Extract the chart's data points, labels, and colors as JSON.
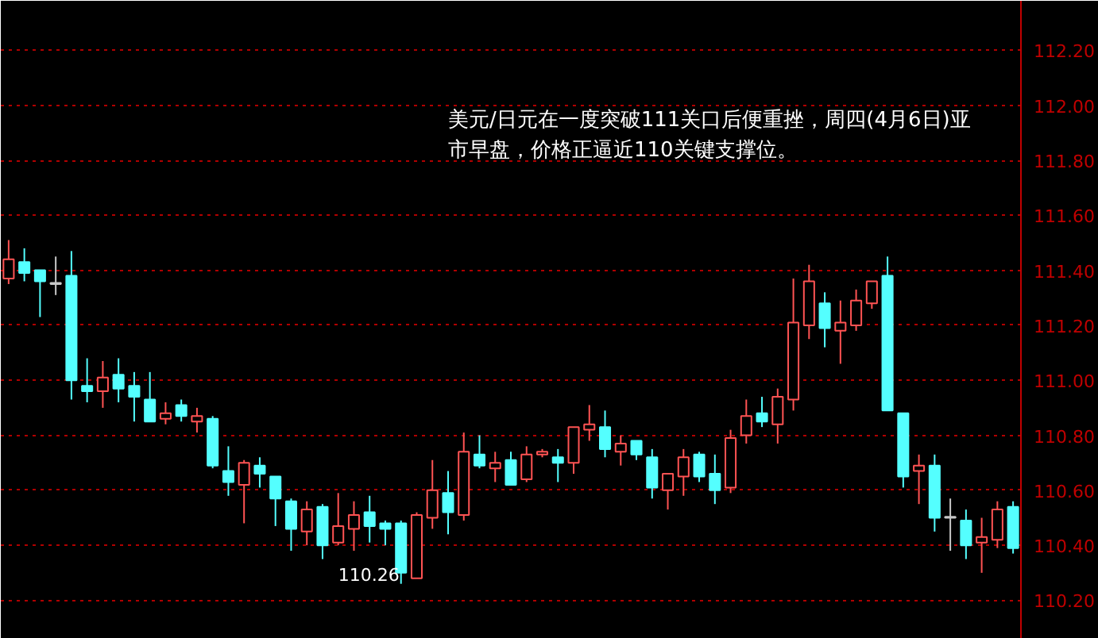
{
  "chart_data": {
    "type": "candlestick",
    "categories": [
      null,
      null,
      null,
      null,
      null,
      null,
      null,
      null,
      null,
      null,
      null,
      null,
      null,
      null,
      null,
      null,
      null,
      null,
      null,
      null,
      null,
      null,
      null,
      null,
      null,
      null,
      null,
      null,
      null,
      null,
      null,
      null,
      null,
      null,
      null,
      null,
      null,
      null,
      null,
      null,
      null,
      null,
      null,
      null,
      null,
      null,
      null,
      null,
      null,
      null,
      null,
      null,
      null,
      null,
      null,
      null,
      null,
      null,
      null,
      null,
      null,
      null,
      null,
      null,
      null
    ],
    "ohlc": [
      [
        111.37,
        111.51,
        111.35,
        111.44
      ],
      [
        111.43,
        111.48,
        111.36,
        111.39
      ],
      [
        111.4,
        111.4,
        111.23,
        111.36
      ],
      [
        111.35,
        111.45,
        111.31,
        111.35
      ],
      [
        111.38,
        111.47,
        110.93,
        111.0
      ],
      [
        110.98,
        111.08,
        110.92,
        110.96
      ],
      [
        110.96,
        111.07,
        110.9,
        111.01
      ],
      [
        111.02,
        111.08,
        110.92,
        110.97
      ],
      [
        110.98,
        111.03,
        110.85,
        110.94
      ],
      [
        110.93,
        111.03,
        110.85,
        110.85
      ],
      [
        110.86,
        110.92,
        110.84,
        110.88
      ],
      [
        110.91,
        110.93,
        110.85,
        110.87
      ],
      [
        110.85,
        110.9,
        110.81,
        110.87
      ],
      [
        110.86,
        110.87,
        110.68,
        110.69
      ],
      [
        110.67,
        110.76,
        110.58,
        110.63
      ],
      [
        110.62,
        110.71,
        110.48,
        110.7
      ],
      [
        110.69,
        110.72,
        110.61,
        110.66
      ],
      [
        110.65,
        110.65,
        110.47,
        110.57
      ],
      [
        110.56,
        110.57,
        110.38,
        110.46
      ],
      [
        110.45,
        110.56,
        110.4,
        110.53
      ],
      [
        110.54,
        110.55,
        110.35,
        110.4
      ],
      [
        110.41,
        110.59,
        110.4,
        110.47
      ],
      [
        110.46,
        110.56,
        110.38,
        110.51
      ],
      [
        110.52,
        110.58,
        110.41,
        110.47
      ],
      [
        110.48,
        110.49,
        110.4,
        110.46
      ],
      [
        110.48,
        110.49,
        110.26,
        110.3
      ],
      [
        110.28,
        110.52,
        110.28,
        110.51
      ],
      [
        110.5,
        110.71,
        110.46,
        110.6
      ],
      [
        110.59,
        110.67,
        110.44,
        110.52
      ],
      [
        110.51,
        110.81,
        110.49,
        110.74
      ],
      [
        110.73,
        110.8,
        110.68,
        110.69
      ],
      [
        110.68,
        110.74,
        110.63,
        110.7
      ],
      [
        110.71,
        110.74,
        110.62,
        110.62
      ],
      [
        110.64,
        110.76,
        110.63,
        110.73
      ],
      [
        110.73,
        110.75,
        110.72,
        110.74
      ],
      [
        110.72,
        110.75,
        110.63,
        110.7
      ],
      [
        110.7,
        110.83,
        110.66,
        110.83
      ],
      [
        110.82,
        110.91,
        110.78,
        110.84
      ],
      [
        110.83,
        110.89,
        110.72,
        110.75
      ],
      [
        110.74,
        110.8,
        110.69,
        110.77
      ],
      [
        110.78,
        110.78,
        110.71,
        110.73
      ],
      [
        110.72,
        110.75,
        110.57,
        110.61
      ],
      [
        110.6,
        110.66,
        110.53,
        110.66
      ],
      [
        110.65,
        110.75,
        110.58,
        110.72
      ],
      [
        110.73,
        110.74,
        110.63,
        110.65
      ],
      [
        110.66,
        110.73,
        110.55,
        110.6
      ],
      [
        110.61,
        110.82,
        110.59,
        110.79
      ],
      [
        110.8,
        110.93,
        110.77,
        110.87
      ],
      [
        110.88,
        110.94,
        110.83,
        110.85
      ],
      [
        110.84,
        110.97,
        110.77,
        110.94
      ],
      [
        110.93,
        111.37,
        110.89,
        111.21
      ],
      [
        111.2,
        111.42,
        111.15,
        111.36
      ],
      [
        111.28,
        111.32,
        111.12,
        111.19
      ],
      [
        111.18,
        111.29,
        111.06,
        111.21
      ],
      [
        111.2,
        111.33,
        111.18,
        111.29
      ],
      [
        111.28,
        111.36,
        111.26,
        111.36
      ],
      [
        111.38,
        111.45,
        110.89,
        110.89
      ],
      [
        110.88,
        110.88,
        110.61,
        110.65
      ],
      [
        110.67,
        110.73,
        110.55,
        110.69
      ],
      [
        110.69,
        110.73,
        110.45,
        110.5
      ],
      [
        110.5,
        110.57,
        110.38,
        110.5
      ],
      [
        110.49,
        110.53,
        110.35,
        110.4
      ],
      [
        110.41,
        110.5,
        110.3,
        110.43
      ],
      [
        110.42,
        110.56,
        110.39,
        110.53
      ],
      [
        110.54,
        110.56,
        110.37,
        110.39
      ]
    ],
    "colors": [
      "#ff5353",
      "#54ffff",
      "#54ffff",
      "#c8c8c8",
      "#54ffff",
      "#54ffff",
      "#ff5353",
      "#54ffff",
      "#54ffff",
      "#54ffff",
      "#ff5353",
      "#54ffff",
      "#ff5353",
      "#54ffff",
      "#54ffff",
      "#ff5353",
      "#54ffff",
      "#54ffff",
      "#54ffff",
      "#ff5353",
      "#54ffff",
      "#ff5353",
      "#ff5353",
      "#54ffff",
      "#54ffff",
      "#54ffff",
      "#ff5353",
      "#ff5353",
      "#54ffff",
      "#ff5353",
      "#54ffff",
      "#ff5353",
      "#54ffff",
      "#ff5353",
      "#ff5353",
      "#54ffff",
      "#ff5353",
      "#ff5353",
      "#54ffff",
      "#ff5353",
      "#54ffff",
      "#54ffff",
      "#ff5353",
      "#ff5353",
      "#54ffff",
      "#54ffff",
      "#ff5353",
      "#ff5353",
      "#54ffff",
      "#ff5353",
      "#ff5353",
      "#ff5353",
      "#54ffff",
      "#ff5353",
      "#ff5353",
      "#ff5353",
      "#54ffff",
      "#54ffff",
      "#ff5353",
      "#54ffff",
      "#c8c8c8",
      "#54ffff",
      "#ff5353",
      "#ff5353",
      "#54ffff"
    ],
    "ylim": [
      110.06,
      112.38
    ],
    "yticks": [
      {
        "value": 110.2,
        "label": "110.20"
      },
      {
        "value": 110.4,
        "label": "110.40"
      },
      {
        "value": 110.6,
        "label": "110.60"
      },
      {
        "value": 110.8,
        "label": "110.80"
      },
      {
        "value": 111.0,
        "label": "111.00"
      },
      {
        "value": 111.2,
        "label": "111.20"
      },
      {
        "value": 111.4,
        "label": "111.40"
      },
      {
        "value": 111.6,
        "label": "111.60"
      },
      {
        "value": 111.8,
        "label": "111.80"
      },
      {
        "value": 112.0,
        "label": "112.00"
      },
      {
        "value": 112.2,
        "label": "112.20"
      }
    ],
    "grid": "y",
    "tick_labels": "y",
    "annotations": [
      "美元/日元在一度突破111关口后便重挫，周四(4月6日)亚市早盘，价格正逼近110关键支撑位。",
      "110.26"
    ]
  }
}
